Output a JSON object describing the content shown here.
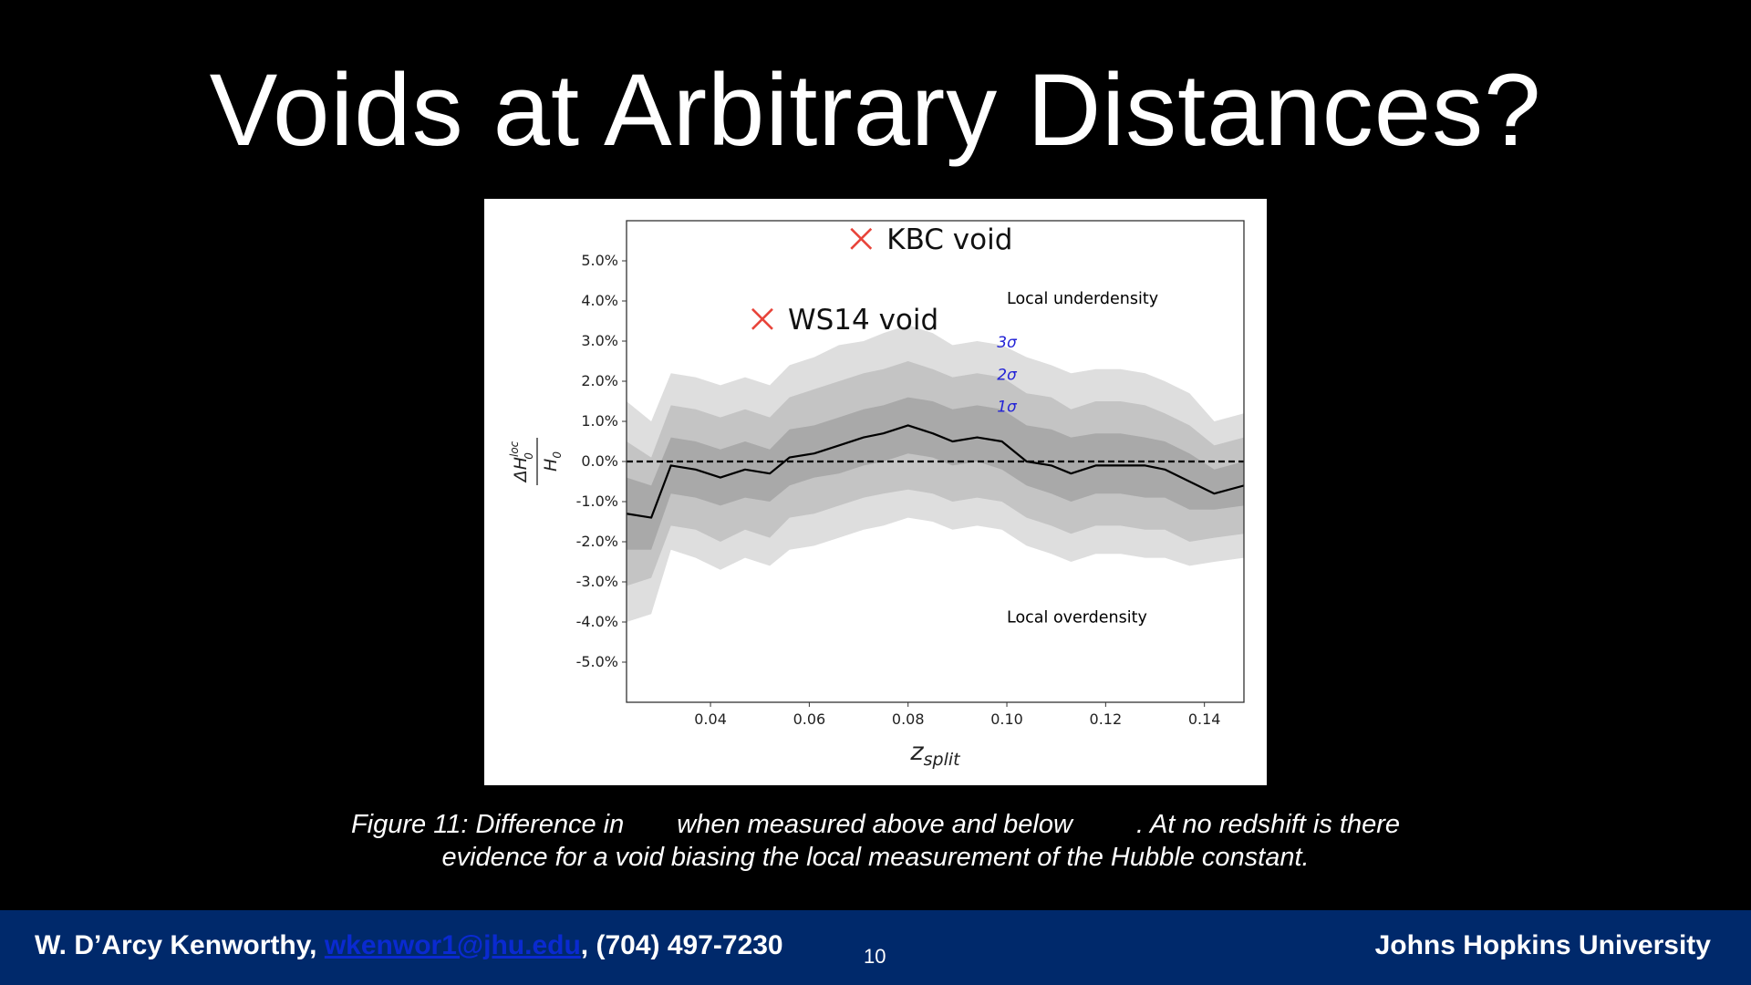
{
  "slide": {
    "title": "Voids at Arbitrary Distances?",
    "caption_line1_a": "Figure 11: Difference in",
    "caption_line1_b": "when measured above and below",
    "caption_line1_c": ". At no redshift is there",
    "caption_line2": "evidence for a void biasing the local measurement of the Hubble constant."
  },
  "footer": {
    "author_prefix": "W. D’Arcy Kenworthy, ",
    "email": "wkenwor1@jhu.edu",
    "author_suffix": ", (704) 497-7230",
    "page_number": "10",
    "institution": "Johns Hopkins University",
    "background_color": "#00296b"
  },
  "chart_data": {
    "type": "line",
    "xlabel": "z",
    "xlabel_subscript": "split",
    "ylabel": "ΔH",
    "ylabel_superscript": "loc",
    "ylabel_subscript": "0",
    "ylabel_denominator": "H",
    "ylabel_denominator_subscript": "0",
    "xlim": [
      0.023,
      0.148
    ],
    "ylim": [
      -6.0,
      6.0
    ],
    "xticks": [
      0.04,
      0.06,
      0.08,
      0.1,
      0.12,
      0.14
    ],
    "xtick_labels": [
      "0.04",
      "0.06",
      "0.08",
      "0.10",
      "0.12",
      "0.14"
    ],
    "yticks": [
      5,
      4,
      3,
      2,
      1,
      0,
      -1,
      -2,
      -3,
      -4,
      -5
    ],
    "ytick_labels": [
      "5.0%",
      "4.0%",
      "3.0%",
      "2.0%",
      "1.0%",
      "0.0%",
      "-1.0%",
      "-2.0%",
      "-3.0%",
      "-4.0%",
      "-5.0%"
    ],
    "x": [
      0.023,
      0.028,
      0.032,
      0.037,
      0.042,
      0.047,
      0.052,
      0.056,
      0.061,
      0.066,
      0.071,
      0.075,
      0.08,
      0.085,
      0.089,
      0.094,
      0.099,
      0.104,
      0.109,
      0.113,
      0.118,
      0.123,
      0.128,
      0.132,
      0.137,
      0.142,
      0.148
    ],
    "series": [
      {
        "role": "central",
        "values": [
          -1.3,
          -1.4,
          -0.1,
          -0.2,
          -0.4,
          -0.2,
          -0.3,
          0.1,
          0.2,
          0.4,
          0.6,
          0.7,
          0.9,
          0.7,
          0.5,
          0.6,
          0.5,
          0.0,
          -0.1,
          -0.3,
          -0.1,
          -0.1,
          -0.1,
          -0.2,
          -0.5,
          -0.8,
          -0.6
        ],
        "color": "#000000"
      },
      {
        "role": "band-3sigma-upper",
        "values": [
          1.5,
          1.0,
          2.2,
          2.1,
          1.9,
          2.1,
          1.9,
          2.4,
          2.6,
          2.9,
          3.0,
          3.2,
          3.4,
          3.2,
          2.9,
          3.0,
          2.9,
          2.6,
          2.4,
          2.2,
          2.3,
          2.3,
          2.2,
          2.0,
          1.7,
          1.0,
          1.2
        ],
        "color": "#dedede"
      },
      {
        "role": "band-3sigma-lower",
        "values": [
          -4.0,
          -3.8,
          -2.2,
          -2.4,
          -2.7,
          -2.4,
          -2.6,
          -2.2,
          -2.1,
          -1.9,
          -1.7,
          -1.6,
          -1.4,
          -1.5,
          -1.7,
          -1.6,
          -1.7,
          -2.1,
          -2.3,
          -2.5,
          -2.3,
          -2.3,
          -2.4,
          -2.4,
          -2.6,
          -2.5,
          -2.4
        ],
        "color": "#dedede"
      },
      {
        "role": "band-2sigma-upper",
        "values": [
          0.5,
          0.1,
          1.4,
          1.3,
          1.1,
          1.3,
          1.1,
          1.6,
          1.8,
          2.0,
          2.2,
          2.3,
          2.5,
          2.3,
          2.1,
          2.2,
          2.1,
          1.7,
          1.6,
          1.3,
          1.5,
          1.5,
          1.4,
          1.2,
          0.9,
          0.4,
          0.6
        ],
        "color": "#c4c4c4"
      },
      {
        "role": "band-2sigma-lower",
        "values": [
          -3.1,
          -2.9,
          -1.6,
          -1.7,
          -2.0,
          -1.7,
          -1.9,
          -1.4,
          -1.3,
          -1.1,
          -0.9,
          -0.8,
          -0.7,
          -0.8,
          -1.0,
          -0.9,
          -1.0,
          -1.4,
          -1.6,
          -1.8,
          -1.6,
          -1.6,
          -1.7,
          -1.7,
          -2.0,
          -1.9,
          -1.8
        ],
        "color": "#c4c4c4"
      },
      {
        "role": "band-1sigma-upper",
        "values": [
          -0.4,
          -0.6,
          0.6,
          0.5,
          0.3,
          0.5,
          0.3,
          0.8,
          0.9,
          1.1,
          1.3,
          1.4,
          1.6,
          1.5,
          1.3,
          1.4,
          1.3,
          0.9,
          0.8,
          0.6,
          0.7,
          0.7,
          0.6,
          0.5,
          0.2,
          -0.2,
          0.0
        ],
        "color": "#a9a9a9"
      },
      {
        "role": "band-1sigma-lower",
        "values": [
          -2.2,
          -2.2,
          -0.8,
          -0.9,
          -1.1,
          -0.9,
          -1.0,
          -0.6,
          -0.4,
          -0.3,
          -0.1,
          0.0,
          0.2,
          0.1,
          -0.1,
          0.0,
          -0.2,
          -0.6,
          -0.8,
          -1.0,
          -0.8,
          -0.8,
          -0.9,
          -0.9,
          -1.2,
          -1.2,
          -1.1
        ],
        "color": "#a9a9a9"
      }
    ],
    "reference_line": {
      "y": 0.0,
      "style": "dashed",
      "color": "#000000"
    },
    "markers": [
      {
        "label": "KBC void",
        "x": 0.0705,
        "y": 5.55,
        "color": "#e8443a"
      },
      {
        "label": "WS14 void",
        "x": 0.0505,
        "y": 3.55,
        "color": "#e8443a"
      }
    ],
    "annotations": [
      {
        "text": "Local underdensity",
        "x": 0.1,
        "y": 4.05,
        "color": "#000000"
      },
      {
        "text": "Local overdensity",
        "x": 0.1,
        "y": -3.9,
        "color": "#000000"
      },
      {
        "text": "3σ",
        "x": 0.098,
        "y": 2.95,
        "color": "#2323d6"
      },
      {
        "text": "2σ",
        "x": 0.098,
        "y": 2.15,
        "color": "#2323d6"
      },
      {
        "text": "1σ",
        "x": 0.098,
        "y": 1.35,
        "color": "#2323d6"
      }
    ]
  }
}
